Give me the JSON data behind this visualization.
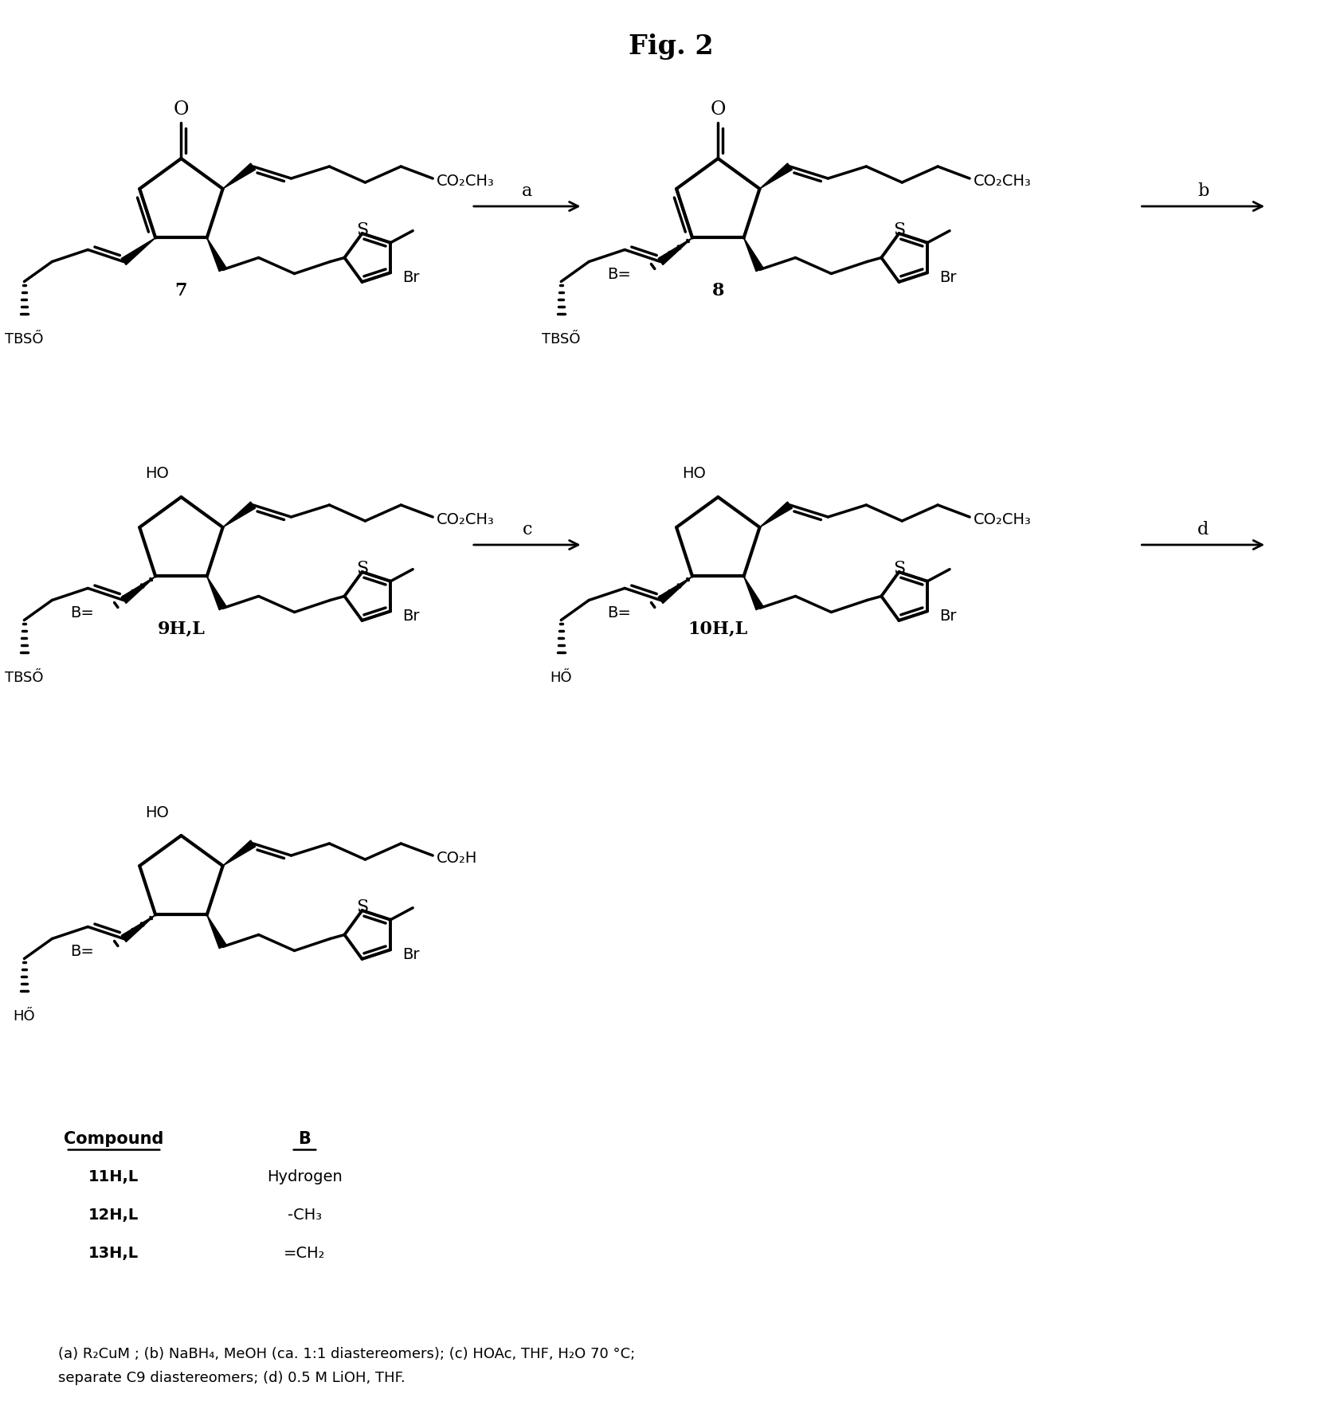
{
  "title": "Fig. 2",
  "background_color": "#ffffff",
  "footnote_line1": "(a) R₂CuM ; (b) NaBH₄, MeOH (ca. 1:1 diastereomers); (c) HOAc, THF, H₂O 70 °C;",
  "footnote_line2": "separate C9 diastereomers; (d) 0.5 M LiOH, THF.",
  "compound_rows": [
    [
      "11H,L",
      "Hydrogen"
    ],
    [
      "12H,L",
      "-CH₃"
    ],
    [
      "13H,L",
      "=CH₂"
    ]
  ]
}
